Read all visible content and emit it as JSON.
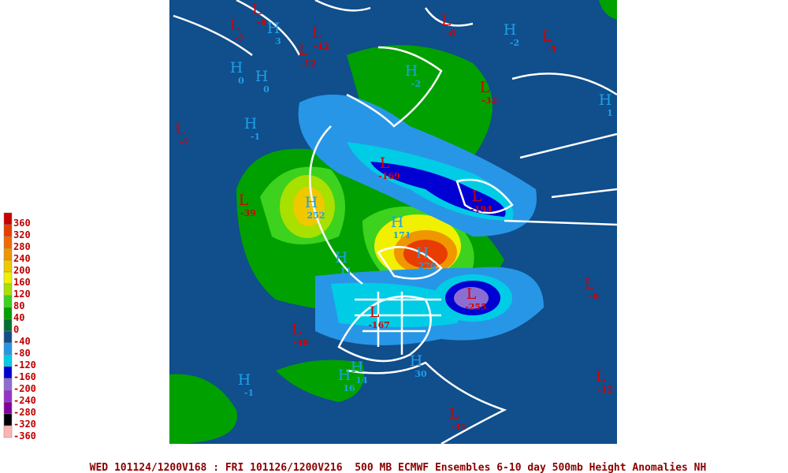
{
  "legend": [
    {
      "label": "360",
      "color": "#c80000"
    },
    {
      "label": "320",
      "color": "#e83c00"
    },
    {
      "label": "280",
      "color": "#f06a00"
    },
    {
      "label": "240",
      "color": "#f09600"
    },
    {
      "label": "200",
      "color": "#f0c800"
    },
    {
      "label": "160",
      "color": "#f0f000"
    },
    {
      "label": "120",
      "color": "#a8e000"
    },
    {
      "label": "80",
      "color": "#3cd21e"
    },
    {
      "label": "40",
      "color": "#00a000"
    },
    {
      "label": "0",
      "color": "#006e32"
    },
    {
      "label": "-40",
      "color": "#104e8c"
    },
    {
      "label": "-80",
      "color": "#2896e6"
    },
    {
      "label": "-120",
      "color": "#00cce6"
    },
    {
      "label": "-160",
      "color": "#0000d2"
    },
    {
      "label": "-200",
      "color": "#8c6ed2"
    },
    {
      "label": "-240",
      "color": "#9632c8"
    },
    {
      "label": "-280",
      "color": "#8200a0"
    },
    {
      "label": "-320",
      "color": "#000000"
    },
    {
      "label": "-360",
      "color": "#ffb4b4"
    }
  ],
  "centers": [
    {
      "letter": "L",
      "value": "-7"
    },
    {
      "letter": "L",
      "value": "-9"
    },
    {
      "letter": "H",
      "value": "3"
    },
    {
      "letter": "L",
      "value": "-12"
    },
    {
      "letter": "L",
      "value": "-12"
    },
    {
      "letter": "H",
      "value": "0"
    },
    {
      "letter": "H",
      "value": "0"
    },
    {
      "letter": "L",
      "value": "-7"
    },
    {
      "letter": "H",
      "value": "-1"
    },
    {
      "letter": "L",
      "value": "-39"
    },
    {
      "letter": "H",
      "value": "252"
    },
    {
      "letter": "H",
      "value": "171"
    },
    {
      "letter": "H",
      "value": "276"
    },
    {
      "letter": "L",
      "value": "-167"
    },
    {
      "letter": "L",
      "value": "-255"
    },
    {
      "letter": "L",
      "value": "-40"
    },
    {
      "letter": "H",
      "value": "-1"
    },
    {
      "letter": "H",
      "value": "16"
    },
    {
      "letter": "H",
      "value": "14"
    },
    {
      "letter": "H",
      "value": "-2"
    },
    {
      "letter": "L",
      "value": "-33"
    },
    {
      "letter": "L",
      "value": "-194"
    },
    {
      "letter": "L",
      "value": "-169"
    },
    {
      "letter": "L",
      "value": "-9"
    },
    {
      "letter": "L",
      "value": "-12"
    },
    {
      "letter": "H",
      "value": "1"
    },
    {
      "letter": "L",
      "value": "-5"
    },
    {
      "letter": "L",
      "value": "-6"
    },
    {
      "letter": "H",
      "value": "-2"
    },
    {
      "letter": "L",
      "value": "-31"
    },
    {
      "letter": "H",
      "value": "11"
    },
    {
      "letter": "H",
      "value": "30"
    }
  ],
  "caption": "WED 101124/1200V168 : FRI 101126/1200V216  500 MB ECMWF Ensembles 6-10 day 500mb Height Anomalies NH"
}
